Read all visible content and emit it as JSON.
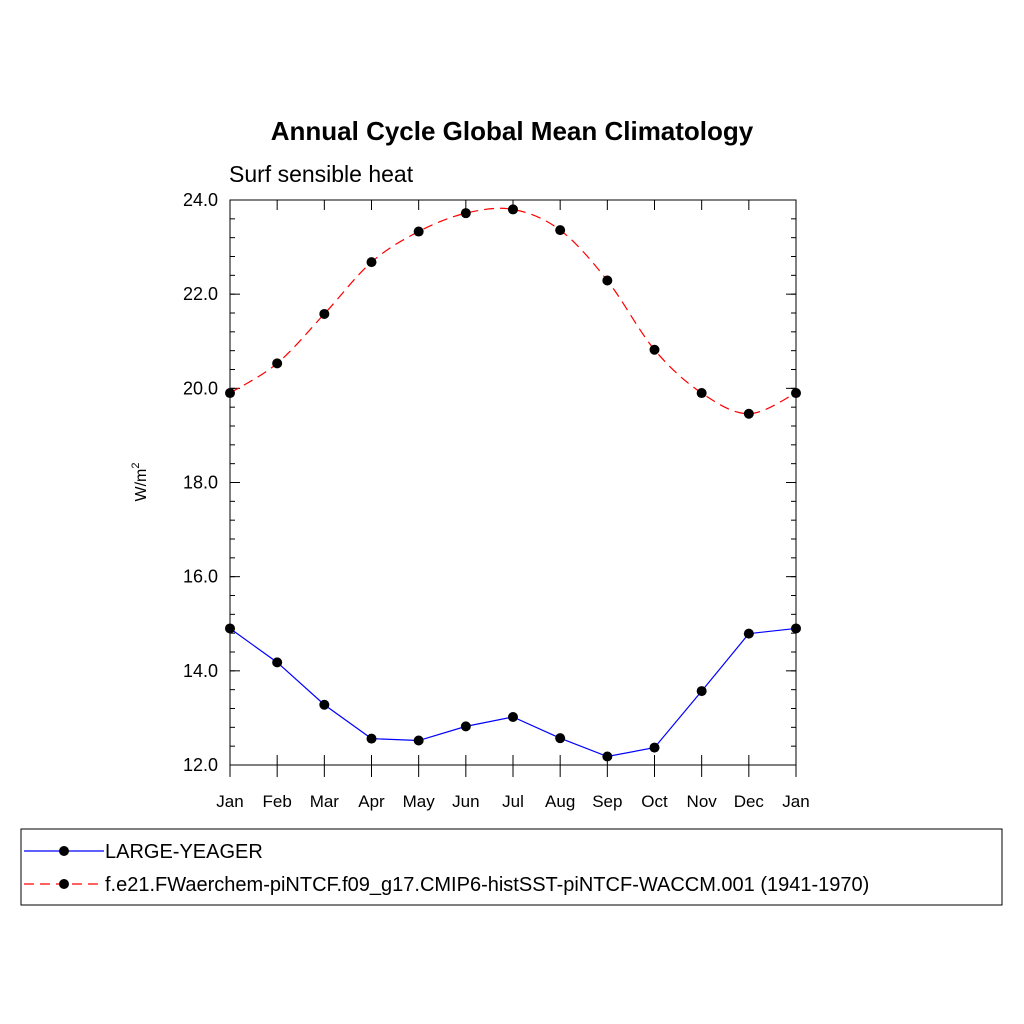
{
  "chart_data": {
    "type": "line",
    "title": "Annual Cycle Global Mean Climatology",
    "subtitle": "Surf sensible heat",
    "ylabel": "W/m",
    "ylabel_superscript": "2",
    "xlabel": "",
    "ylim": [
      12.0,
      24.0
    ],
    "yticks": [
      "12.0",
      "14.0",
      "16.0",
      "18.0",
      "20.0",
      "22.0",
      "24.0"
    ],
    "ytick_values": [
      12,
      14,
      16,
      18,
      20,
      22,
      24
    ],
    "categories": [
      "Jan",
      "Feb",
      "Mar",
      "Apr",
      "May",
      "Jun",
      "Jul",
      "Aug",
      "Sep",
      "Oct",
      "Nov",
      "Dec",
      "Jan"
    ],
    "grid": false,
    "legend_placement": "bottom",
    "series": [
      {
        "name": "LARGE-YEAGER",
        "color": "#0000ff",
        "dash": "solid",
        "values": [
          14.9,
          14.18,
          13.28,
          12.56,
          12.52,
          12.82,
          13.02,
          12.57,
          12.18,
          12.37,
          13.57,
          14.79,
          14.9
        ]
      },
      {
        "name": "f.e21.FWaerchem-piNTCF.f09_g17.CMIP6-histSST-piNTCF-WACCM.001 (1941-1970)",
        "color": "#ff0000",
        "dash": "dashed",
        "values": [
          19.9,
          20.53,
          21.58,
          22.68,
          23.33,
          23.72,
          23.8,
          23.36,
          22.29,
          20.82,
          19.9,
          19.46,
          19.9
        ]
      }
    ]
  }
}
